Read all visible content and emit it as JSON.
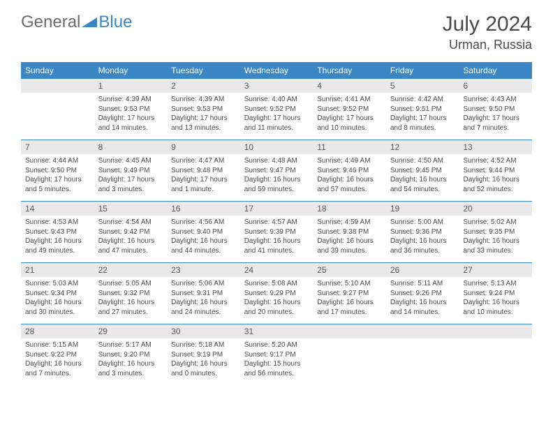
{
  "logo": {
    "general": "General",
    "blue": "Blue"
  },
  "title": {
    "month_year": "July 2024",
    "location": "Urman, Russia"
  },
  "colors": {
    "header_bg": "#3b86c4",
    "daynum_bg": "#e9e9e9",
    "text": "#4a4a4a",
    "logo_gray": "#6b6b6b",
    "logo_blue": "#3b86c4"
  },
  "weekdays": [
    "Sunday",
    "Monday",
    "Tuesday",
    "Wednesday",
    "Thursday",
    "Friday",
    "Saturday"
  ],
  "weeks": [
    {
      "nums": [
        "",
        "1",
        "2",
        "3",
        "4",
        "5",
        "6"
      ],
      "cells": [
        {},
        {
          "sunrise": "Sunrise: 4:39 AM",
          "sunset": "Sunset: 9:53 PM",
          "day1": "Daylight: 17 hours",
          "day2": "and 14 minutes."
        },
        {
          "sunrise": "Sunrise: 4:39 AM",
          "sunset": "Sunset: 9:53 PM",
          "day1": "Daylight: 17 hours",
          "day2": "and 13 minutes."
        },
        {
          "sunrise": "Sunrise: 4:40 AM",
          "sunset": "Sunset: 9:52 PM",
          "day1": "Daylight: 17 hours",
          "day2": "and 11 minutes."
        },
        {
          "sunrise": "Sunrise: 4:41 AM",
          "sunset": "Sunset: 9:52 PM",
          "day1": "Daylight: 17 hours",
          "day2": "and 10 minutes."
        },
        {
          "sunrise": "Sunrise: 4:42 AM",
          "sunset": "Sunset: 9:51 PM",
          "day1": "Daylight: 17 hours",
          "day2": "and 8 minutes."
        },
        {
          "sunrise": "Sunrise: 4:43 AM",
          "sunset": "Sunset: 9:50 PM",
          "day1": "Daylight: 17 hours",
          "day2": "and 7 minutes."
        }
      ]
    },
    {
      "nums": [
        "7",
        "8",
        "9",
        "10",
        "11",
        "12",
        "13"
      ],
      "cells": [
        {
          "sunrise": "Sunrise: 4:44 AM",
          "sunset": "Sunset: 9:50 PM",
          "day1": "Daylight: 17 hours",
          "day2": "and 5 minutes."
        },
        {
          "sunrise": "Sunrise: 4:45 AM",
          "sunset": "Sunset: 9:49 PM",
          "day1": "Daylight: 17 hours",
          "day2": "and 3 minutes."
        },
        {
          "sunrise": "Sunrise: 4:47 AM",
          "sunset": "Sunset: 9:48 PM",
          "day1": "Daylight: 17 hours",
          "day2": "and 1 minute."
        },
        {
          "sunrise": "Sunrise: 4:48 AM",
          "sunset": "Sunset: 9:47 PM",
          "day1": "Daylight: 16 hours",
          "day2": "and 59 minutes."
        },
        {
          "sunrise": "Sunrise: 4:49 AM",
          "sunset": "Sunset: 9:46 PM",
          "day1": "Daylight: 16 hours",
          "day2": "and 57 minutes."
        },
        {
          "sunrise": "Sunrise: 4:50 AM",
          "sunset": "Sunset: 9:45 PM",
          "day1": "Daylight: 16 hours",
          "day2": "and 54 minutes."
        },
        {
          "sunrise": "Sunrise: 4:52 AM",
          "sunset": "Sunset: 9:44 PM",
          "day1": "Daylight: 16 hours",
          "day2": "and 52 minutes."
        }
      ]
    },
    {
      "nums": [
        "14",
        "15",
        "16",
        "17",
        "18",
        "19",
        "20"
      ],
      "cells": [
        {
          "sunrise": "Sunrise: 4:53 AM",
          "sunset": "Sunset: 9:43 PM",
          "day1": "Daylight: 16 hours",
          "day2": "and 49 minutes."
        },
        {
          "sunrise": "Sunrise: 4:54 AM",
          "sunset": "Sunset: 9:42 PM",
          "day1": "Daylight: 16 hours",
          "day2": "and 47 minutes."
        },
        {
          "sunrise": "Sunrise: 4:56 AM",
          "sunset": "Sunset: 9:40 PM",
          "day1": "Daylight: 16 hours",
          "day2": "and 44 minutes."
        },
        {
          "sunrise": "Sunrise: 4:57 AM",
          "sunset": "Sunset: 9:39 PM",
          "day1": "Daylight: 16 hours",
          "day2": "and 41 minutes."
        },
        {
          "sunrise": "Sunrise: 4:59 AM",
          "sunset": "Sunset: 9:38 PM",
          "day1": "Daylight: 16 hours",
          "day2": "and 39 minutes."
        },
        {
          "sunrise": "Sunrise: 5:00 AM",
          "sunset": "Sunset: 9:36 PM",
          "day1": "Daylight: 16 hours",
          "day2": "and 36 minutes."
        },
        {
          "sunrise": "Sunrise: 5:02 AM",
          "sunset": "Sunset: 9:35 PM",
          "day1": "Daylight: 16 hours",
          "day2": "and 33 minutes."
        }
      ]
    },
    {
      "nums": [
        "21",
        "22",
        "23",
        "24",
        "25",
        "26",
        "27"
      ],
      "cells": [
        {
          "sunrise": "Sunrise: 5:03 AM",
          "sunset": "Sunset: 9:34 PM",
          "day1": "Daylight: 16 hours",
          "day2": "and 30 minutes."
        },
        {
          "sunrise": "Sunrise: 5:05 AM",
          "sunset": "Sunset: 9:32 PM",
          "day1": "Daylight: 16 hours",
          "day2": "and 27 minutes."
        },
        {
          "sunrise": "Sunrise: 5:06 AM",
          "sunset": "Sunset: 9:31 PM",
          "day1": "Daylight: 16 hours",
          "day2": "and 24 minutes."
        },
        {
          "sunrise": "Sunrise: 5:08 AM",
          "sunset": "Sunset: 9:29 PM",
          "day1": "Daylight: 16 hours",
          "day2": "and 20 minutes."
        },
        {
          "sunrise": "Sunrise: 5:10 AM",
          "sunset": "Sunset: 9:27 PM",
          "day1": "Daylight: 16 hours",
          "day2": "and 17 minutes."
        },
        {
          "sunrise": "Sunrise: 5:11 AM",
          "sunset": "Sunset: 9:26 PM",
          "day1": "Daylight: 16 hours",
          "day2": "and 14 minutes."
        },
        {
          "sunrise": "Sunrise: 5:13 AM",
          "sunset": "Sunset: 9:24 PM",
          "day1": "Daylight: 16 hours",
          "day2": "and 10 minutes."
        }
      ]
    },
    {
      "nums": [
        "28",
        "29",
        "30",
        "31",
        "",
        "",
        ""
      ],
      "cells": [
        {
          "sunrise": "Sunrise: 5:15 AM",
          "sunset": "Sunset: 9:22 PM",
          "day1": "Daylight: 16 hours",
          "day2": "and 7 minutes."
        },
        {
          "sunrise": "Sunrise: 5:17 AM",
          "sunset": "Sunset: 9:20 PM",
          "day1": "Daylight: 16 hours",
          "day2": "and 3 minutes."
        },
        {
          "sunrise": "Sunrise: 5:18 AM",
          "sunset": "Sunset: 9:19 PM",
          "day1": "Daylight: 16 hours",
          "day2": "and 0 minutes."
        },
        {
          "sunrise": "Sunrise: 5:20 AM",
          "sunset": "Sunset: 9:17 PM",
          "day1": "Daylight: 15 hours",
          "day2": "and 56 minutes."
        },
        {},
        {},
        {}
      ]
    }
  ]
}
